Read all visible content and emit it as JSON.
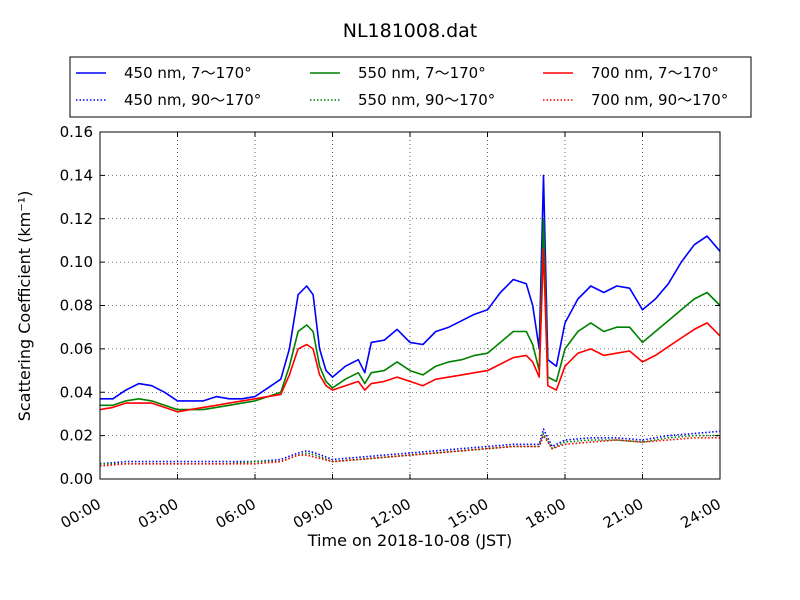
{
  "chart_data": {
    "type": "line",
    "title": "NL181008.dat",
    "xlabel": "Time on 2018-10-08 (JST)",
    "ylabel": "Scattering Coefficient (km⁻¹)",
    "xlim": [
      "00:00",
      "24:00"
    ],
    "ylim": [
      0,
      0.16
    ],
    "xticks": [
      "00:00",
      "03:00",
      "06:00",
      "09:00",
      "12:00",
      "15:00",
      "18:00",
      "21:00",
      "24:00"
    ],
    "yticks": [
      "0.00",
      "0.02",
      "0.04",
      "0.06",
      "0.08",
      "0.10",
      "0.12",
      "0.14",
      "0.16"
    ],
    "grid": true,
    "legend_position": "top",
    "series": [
      {
        "name": "450 nm, 7～170°",
        "color": "#0000ff",
        "style": "solid",
        "points": [
          [
            "00:00",
            0.037
          ],
          [
            "00:30",
            0.037
          ],
          [
            "01:00",
            0.041
          ],
          [
            "01:30",
            0.044
          ],
          [
            "02:00",
            0.043
          ],
          [
            "02:30",
            0.04
          ],
          [
            "03:00",
            0.036
          ],
          [
            "03:30",
            0.036
          ],
          [
            "04:00",
            0.036
          ],
          [
            "04:30",
            0.038
          ],
          [
            "05:00",
            0.037
          ],
          [
            "05:30",
            0.037
          ],
          [
            "06:00",
            0.038
          ],
          [
            "06:30",
            0.042
          ],
          [
            "07:00",
            0.046
          ],
          [
            "07:20",
            0.06
          ],
          [
            "07:40",
            0.085
          ],
          [
            "08:00",
            0.089
          ],
          [
            "08:15",
            0.085
          ],
          [
            "08:30",
            0.06
          ],
          [
            "08:45",
            0.05
          ],
          [
            "09:00",
            0.047
          ],
          [
            "09:30",
            0.052
          ],
          [
            "10:00",
            0.055
          ],
          [
            "10:15",
            0.049
          ],
          [
            "10:30",
            0.063
          ],
          [
            "11:00",
            0.064
          ],
          [
            "11:30",
            0.069
          ],
          [
            "12:00",
            0.063
          ],
          [
            "12:30",
            0.062
          ],
          [
            "13:00",
            0.068
          ],
          [
            "13:30",
            0.07
          ],
          [
            "14:00",
            0.073
          ],
          [
            "14:30",
            0.076
          ],
          [
            "15:00",
            0.078
          ],
          [
            "15:30",
            0.086
          ],
          [
            "16:00",
            0.092
          ],
          [
            "16:30",
            0.09
          ],
          [
            "16:45",
            0.08
          ],
          [
            "17:00",
            0.06
          ],
          [
            "17:10",
            0.14
          ],
          [
            "17:20",
            0.055
          ],
          [
            "17:40",
            0.052
          ],
          [
            "18:00",
            0.072
          ],
          [
            "18:30",
            0.083
          ],
          [
            "19:00",
            0.089
          ],
          [
            "19:30",
            0.086
          ],
          [
            "20:00",
            0.089
          ],
          [
            "20:30",
            0.088
          ],
          [
            "21:00",
            0.078
          ],
          [
            "21:30",
            0.083
          ],
          [
            "22:00",
            0.09
          ],
          [
            "22:30",
            0.1
          ],
          [
            "23:00",
            0.108
          ],
          [
            "23:30",
            0.112
          ],
          [
            "24:00",
            0.105
          ]
        ]
      },
      {
        "name": "550 nm, 7～170°",
        "color": "#008000",
        "style": "solid",
        "points": [
          [
            "00:00",
            0.034
          ],
          [
            "00:30",
            0.034
          ],
          [
            "01:00",
            0.036
          ],
          [
            "01:30",
            0.037
          ],
          [
            "02:00",
            0.036
          ],
          [
            "02:30",
            0.034
          ],
          [
            "03:00",
            0.032
          ],
          [
            "03:30",
            0.032
          ],
          [
            "04:00",
            0.032
          ],
          [
            "04:30",
            0.033
          ],
          [
            "05:00",
            0.034
          ],
          [
            "05:30",
            0.035
          ],
          [
            "06:00",
            0.036
          ],
          [
            "06:30",
            0.038
          ],
          [
            "07:00",
            0.04
          ],
          [
            "07:20",
            0.052
          ],
          [
            "07:40",
            0.068
          ],
          [
            "08:00",
            0.071
          ],
          [
            "08:15",
            0.068
          ],
          [
            "08:30",
            0.052
          ],
          [
            "08:45",
            0.045
          ],
          [
            "09:00",
            0.042
          ],
          [
            "09:30",
            0.046
          ],
          [
            "10:00",
            0.049
          ],
          [
            "10:15",
            0.044
          ],
          [
            "10:30",
            0.049
          ],
          [
            "11:00",
            0.05
          ],
          [
            "11:30",
            0.054
          ],
          [
            "12:00",
            0.05
          ],
          [
            "12:30",
            0.048
          ],
          [
            "13:00",
            0.052
          ],
          [
            "13:30",
            0.054
          ],
          [
            "14:00",
            0.055
          ],
          [
            "14:30",
            0.057
          ],
          [
            "15:00",
            0.058
          ],
          [
            "15:30",
            0.063
          ],
          [
            "16:00",
            0.068
          ],
          [
            "16:30",
            0.068
          ],
          [
            "16:45",
            0.062
          ],
          [
            "17:00",
            0.05
          ],
          [
            "17:10",
            0.12
          ],
          [
            "17:20",
            0.047
          ],
          [
            "17:40",
            0.045
          ],
          [
            "18:00",
            0.06
          ],
          [
            "18:30",
            0.068
          ],
          [
            "19:00",
            0.072
          ],
          [
            "19:30",
            0.068
          ],
          [
            "20:00",
            0.07
          ],
          [
            "20:30",
            0.07
          ],
          [
            "21:00",
            0.063
          ],
          [
            "21:30",
            0.068
          ],
          [
            "22:00",
            0.073
          ],
          [
            "22:30",
            0.078
          ],
          [
            "23:00",
            0.083
          ],
          [
            "23:30",
            0.086
          ],
          [
            "24:00",
            0.08
          ]
        ]
      },
      {
        "name": "700 nm, 7～170°",
        "color": "#ff0000",
        "style": "solid",
        "points": [
          [
            "00:00",
            0.032
          ],
          [
            "00:30",
            0.033
          ],
          [
            "01:00",
            0.035
          ],
          [
            "01:30",
            0.035
          ],
          [
            "02:00",
            0.035
          ],
          [
            "02:30",
            0.033
          ],
          [
            "03:00",
            0.031
          ],
          [
            "03:30",
            0.032
          ],
          [
            "04:00",
            0.033
          ],
          [
            "04:30",
            0.034
          ],
          [
            "05:00",
            0.035
          ],
          [
            "05:30",
            0.036
          ],
          [
            "06:00",
            0.037
          ],
          [
            "06:30",
            0.038
          ],
          [
            "07:00",
            0.039
          ],
          [
            "07:20",
            0.048
          ],
          [
            "07:40",
            0.06
          ],
          [
            "08:00",
            0.062
          ],
          [
            "08:15",
            0.06
          ],
          [
            "08:30",
            0.048
          ],
          [
            "08:45",
            0.043
          ],
          [
            "09:00",
            0.041
          ],
          [
            "09:30",
            0.043
          ],
          [
            "10:00",
            0.045
          ],
          [
            "10:15",
            0.041
          ],
          [
            "10:30",
            0.044
          ],
          [
            "11:00",
            0.045
          ],
          [
            "11:30",
            0.047
          ],
          [
            "12:00",
            0.045
          ],
          [
            "12:30",
            0.043
          ],
          [
            "13:00",
            0.046
          ],
          [
            "13:30",
            0.047
          ],
          [
            "14:00",
            0.048
          ],
          [
            "14:30",
            0.049
          ],
          [
            "15:00",
            0.05
          ],
          [
            "15:30",
            0.053
          ],
          [
            "16:00",
            0.056
          ],
          [
            "16:30",
            0.057
          ],
          [
            "16:45",
            0.054
          ],
          [
            "17:00",
            0.047
          ],
          [
            "17:10",
            0.106
          ],
          [
            "17:20",
            0.043
          ],
          [
            "17:40",
            0.041
          ],
          [
            "18:00",
            0.052
          ],
          [
            "18:30",
            0.058
          ],
          [
            "19:00",
            0.06
          ],
          [
            "19:30",
            0.057
          ],
          [
            "20:00",
            0.058
          ],
          [
            "20:30",
            0.059
          ],
          [
            "21:00",
            0.054
          ],
          [
            "21:30",
            0.057
          ],
          [
            "22:00",
            0.061
          ],
          [
            "22:30",
            0.065
          ],
          [
            "23:00",
            0.069
          ],
          [
            "23:30",
            0.072
          ],
          [
            "24:00",
            0.066
          ]
        ]
      },
      {
        "name": "450 nm, 90～170°",
        "color": "#0000ff",
        "style": "dotted",
        "points": [
          [
            "00:00",
            0.007
          ],
          [
            "01:00",
            0.008
          ],
          [
            "02:00",
            0.008
          ],
          [
            "03:00",
            0.008
          ],
          [
            "04:00",
            0.008
          ],
          [
            "05:00",
            0.008
          ],
          [
            "06:00",
            0.008
          ],
          [
            "07:00",
            0.009
          ],
          [
            "07:40",
            0.012
          ],
          [
            "08:00",
            0.013
          ],
          [
            "08:20",
            0.012
          ],
          [
            "09:00",
            0.009
          ],
          [
            "10:00",
            0.01
          ],
          [
            "11:00",
            0.011
          ],
          [
            "12:00",
            0.012
          ],
          [
            "13:00",
            0.013
          ],
          [
            "14:00",
            0.014
          ],
          [
            "15:00",
            0.015
          ],
          [
            "16:00",
            0.016
          ],
          [
            "17:00",
            0.016
          ],
          [
            "17:10",
            0.023
          ],
          [
            "17:30",
            0.015
          ],
          [
            "18:00",
            0.018
          ],
          [
            "19:00",
            0.019
          ],
          [
            "20:00",
            0.019
          ],
          [
            "21:00",
            0.018
          ],
          [
            "22:00",
            0.02
          ],
          [
            "23:00",
            0.021
          ],
          [
            "24:00",
            0.022
          ]
        ]
      },
      {
        "name": "550 nm, 90～170°",
        "color": "#008000",
        "style": "dotted",
        "points": [
          [
            "00:00",
            0.007
          ],
          [
            "01:00",
            0.007
          ],
          [
            "02:00",
            0.007
          ],
          [
            "03:00",
            0.007
          ],
          [
            "04:00",
            0.007
          ],
          [
            "05:00",
            0.007
          ],
          [
            "06:00",
            0.008
          ],
          [
            "07:00",
            0.008
          ],
          [
            "07:40",
            0.011
          ],
          [
            "08:00",
            0.012
          ],
          [
            "08:20",
            0.011
          ],
          [
            "09:00",
            0.008
          ],
          [
            "10:00",
            0.009
          ],
          [
            "11:00",
            0.01
          ],
          [
            "12:00",
            0.011
          ],
          [
            "13:00",
            0.012
          ],
          [
            "14:00",
            0.013
          ],
          [
            "15:00",
            0.014
          ],
          [
            "16:00",
            0.015
          ],
          [
            "17:00",
            0.015
          ],
          [
            "17:10",
            0.021
          ],
          [
            "17:30",
            0.014
          ],
          [
            "18:00",
            0.017
          ],
          [
            "19:00",
            0.018
          ],
          [
            "20:00",
            0.018
          ],
          [
            "21:00",
            0.017
          ],
          [
            "22:00",
            0.019
          ],
          [
            "23:00",
            0.02
          ],
          [
            "24:00",
            0.02
          ]
        ]
      },
      {
        "name": "700 nm, 90～170°",
        "color": "#ff0000",
        "style": "dotted",
        "points": [
          [
            "00:00",
            0.006
          ],
          [
            "01:00",
            0.007
          ],
          [
            "02:00",
            0.007
          ],
          [
            "03:00",
            0.007
          ],
          [
            "04:00",
            0.007
          ],
          [
            "05:00",
            0.007
          ],
          [
            "06:00",
            0.007
          ],
          [
            "07:00",
            0.008
          ],
          [
            "07:40",
            0.011
          ],
          [
            "08:00",
            0.011
          ],
          [
            "08:20",
            0.01
          ],
          [
            "09:00",
            0.008
          ],
          [
            "10:00",
            0.009
          ],
          [
            "11:00",
            0.01
          ],
          [
            "12:00",
            0.011
          ],
          [
            "13:00",
            0.012
          ],
          [
            "14:00",
            0.013
          ],
          [
            "15:00",
            0.014
          ],
          [
            "16:00",
            0.015
          ],
          [
            "17:00",
            0.015
          ],
          [
            "17:10",
            0.02
          ],
          [
            "17:30",
            0.014
          ],
          [
            "18:00",
            0.016
          ],
          [
            "19:00",
            0.017
          ],
          [
            "20:00",
            0.018
          ],
          [
            "21:00",
            0.017
          ],
          [
            "22:00",
            0.018
          ],
          [
            "23:00",
            0.019
          ],
          [
            "24:00",
            0.019
          ]
        ]
      }
    ],
    "legend_order": [
      0,
      1,
      2,
      3,
      4,
      5
    ]
  }
}
